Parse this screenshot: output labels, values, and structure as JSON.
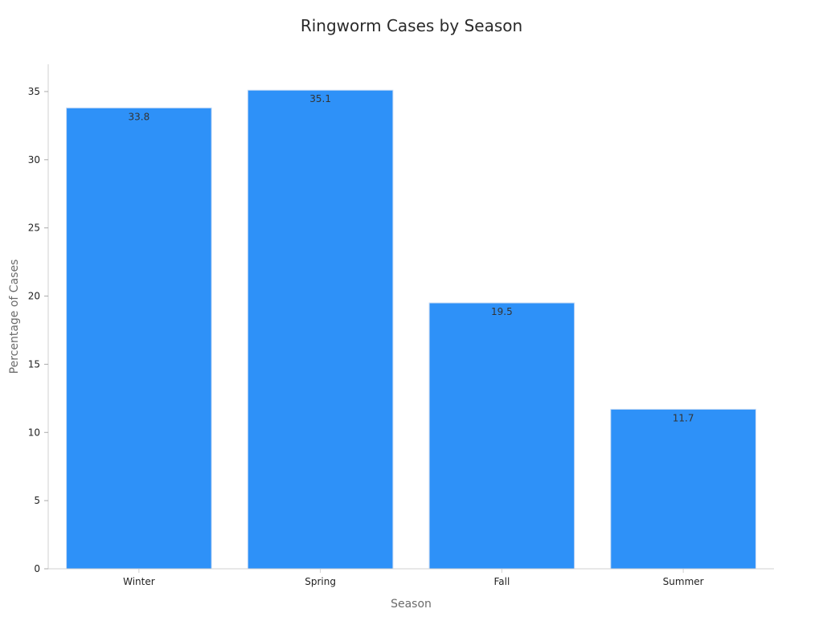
{
  "chart_data": {
    "type": "bar",
    "title": "Ringworm Cases by Season",
    "xlabel": "Season",
    "ylabel": "Percentage of Cases",
    "categories": [
      "Winter",
      "Spring",
      "Fall",
      "Summer"
    ],
    "values": [
      33.8,
      35.1,
      19.5,
      11.7
    ],
    "value_labels": [
      "33.8",
      "35.1",
      "19.5",
      "11.7"
    ],
    "ylim": [
      0,
      37
    ],
    "yticks": [
      0,
      5,
      10,
      15,
      20,
      25,
      30,
      35
    ],
    "grid": false,
    "legend": "none",
    "bar_color": "#2e91f8",
    "bar_edge_color": "#c9dcf5",
    "axis_color": "#d0d0d0"
  }
}
